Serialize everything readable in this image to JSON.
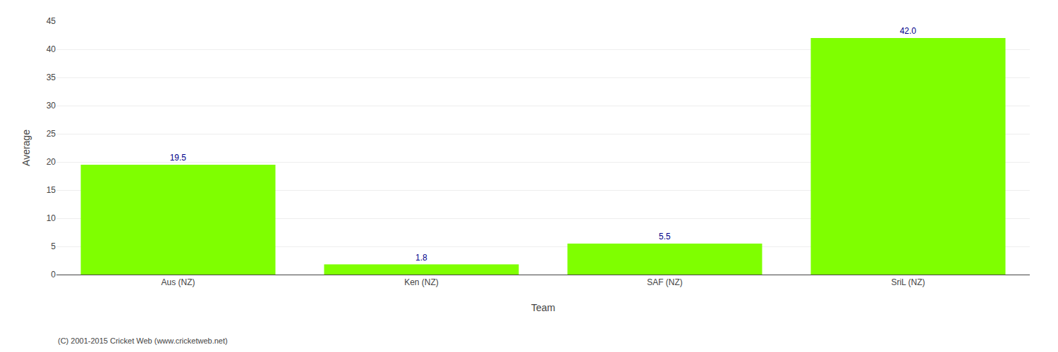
{
  "chart_data": {
    "type": "bar",
    "categories": [
      "Aus (NZ)",
      "Ken (NZ)",
      "SAF (NZ)",
      "SriL (NZ)"
    ],
    "values": [
      19.5,
      1.8,
      5.5,
      42.0
    ],
    "value_labels": [
      "19.5",
      "1.8",
      "5.5",
      "42.0"
    ],
    "data_labels": true,
    "color": "#7fff00",
    "xlabel": "Team",
    "ylabel": "Average",
    "ylim": [
      0,
      45
    ],
    "yticks": [
      0,
      5,
      10,
      15,
      20,
      25,
      30,
      35,
      40,
      45
    ],
    "grid": true,
    "annotations": [
      "(C) 2001-2015 Cricket Web (www.cricketweb.net)"
    ]
  }
}
